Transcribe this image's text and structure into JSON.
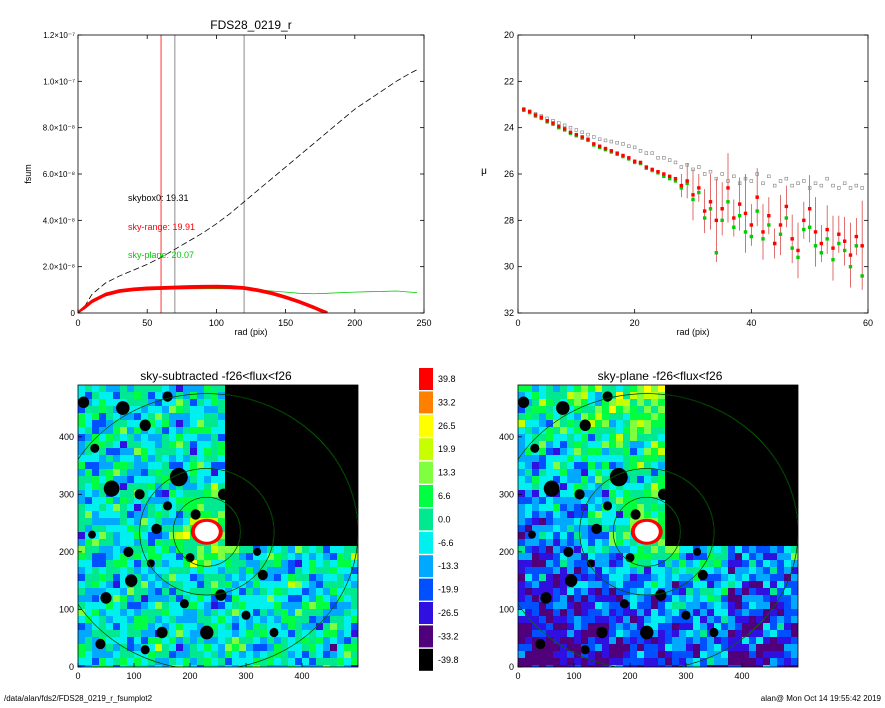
{
  "chart_data": [
    {
      "type": "line",
      "title": "FDS28_0219_r",
      "xlabel": "rad (pix)",
      "ylabel": "fsum",
      "xlim": [
        0,
        250
      ],
      "ylim": [
        0,
        1.2e-07
      ],
      "xticks": [
        "0",
        "50",
        "100",
        "150",
        "200",
        "250"
      ],
      "yticks": [
        "0",
        "2.0×10⁻⁸",
        "4.0×10⁻⁸",
        "6.0×10⁻⁸",
        "8.0×10⁻⁸",
        "1.0×10⁻⁷",
        "1.2×10⁻⁷"
      ],
      "vlines": [
        {
          "x": 60,
          "color": "#ff0000"
        },
        {
          "x": 70,
          "color": "#707070"
        },
        {
          "x": 120,
          "color": "#707070"
        }
      ],
      "annotations": [
        {
          "text": "skybox0: 19.31",
          "color": "#000000"
        },
        {
          "text": "sky-range: 19.91",
          "color": "#ff0000"
        },
        {
          "text": "sky-plane: 20.07",
          "color": "#00cc00"
        }
      ],
      "series": [
        {
          "color": "#000000",
          "style": "dashed",
          "x": [
            0,
            5,
            10,
            20,
            30,
            40,
            50,
            60,
            70,
            80,
            90,
            100,
            110,
            120,
            130,
            140,
            150,
            160,
            170,
            180,
            190,
            200,
            210,
            220,
            230,
            240,
            245
          ],
          "y": [
            0,
            3e-09,
            8e-09,
            1.3e-08,
            1.6e-08,
            1.85e-08,
            2.1e-08,
            2.4e-08,
            2.75e-08,
            3.1e-08,
            3.45e-08,
            3.85e-08,
            4.3e-08,
            4.8e-08,
            5.3e-08,
            5.8e-08,
            6.3e-08,
            6.8e-08,
            7.3e-08,
            7.8e-08,
            8.3e-08,
            8.8e-08,
            9.2e-08,
            9.6e-08,
            1e-07,
            1.035e-07,
            1.05e-07
          ]
        },
        {
          "color": "#00cc00",
          "style": "solid",
          "x": [
            0,
            5,
            10,
            20,
            30,
            40,
            50,
            60,
            70,
            80,
            90,
            100,
            110,
            120,
            130,
            140,
            150,
            160,
            170,
            180,
            190,
            200,
            210,
            220,
            230,
            240,
            245
          ],
          "y": [
            0,
            2.5e-09,
            5e-09,
            7.5e-09,
            9e-09,
            9.7e-09,
            1e-08,
            1.02e-08,
            1.03e-08,
            1.04e-08,
            1.05e-08,
            1.05e-08,
            1.05e-08,
            1.03e-08,
            1e-08,
            9.5e-09,
            9e-09,
            8.5e-09,
            8.3e-09,
            8.5e-09,
            8.8e-09,
            9e-09,
            9.2e-09,
            9.3e-09,
            9.5e-09,
            9e-09,
            8.8e-09
          ]
        },
        {
          "color": "#ff0000",
          "style": "band",
          "x": [
            0,
            5,
            10,
            20,
            30,
            40,
            50,
            60,
            70,
            80,
            90,
            100,
            110,
            120,
            130,
            140,
            150,
            160,
            170,
            175,
            180
          ],
          "y": [
            0,
            2.5e-09,
            5e-09,
            8e-09,
            9.5e-09,
            1.02e-08,
            1.06e-08,
            1.08e-08,
            1.1e-08,
            1.12e-08,
            1.13e-08,
            1.14e-08,
            1.12e-08,
            1.08e-08,
            9.8e-09,
            8.5e-09,
            6.8e-09,
            4.8e-09,
            2.5e-09,
            1.2e-09,
            0
          ]
        }
      ]
    },
    {
      "type": "scatter",
      "xlabel": "rad (pix)",
      "ylabel": "μ",
      "xlim": [
        0,
        60
      ],
      "ylim": [
        32,
        20
      ],
      "xticks": [
        "0",
        "20",
        "40",
        "60"
      ],
      "yticks": [
        "20",
        "22",
        "24",
        "26",
        "28",
        "30",
        "32"
      ],
      "series": [
        {
          "color": "#808080",
          "marker": "square",
          "x": [
            1,
            2,
            3,
            4,
            5,
            6,
            7,
            8,
            9,
            10,
            11,
            12,
            13,
            14,
            15,
            16,
            17,
            18,
            19,
            20,
            21,
            22,
            23,
            24,
            25,
            26,
            27,
            28,
            29,
            30,
            31,
            32,
            33,
            34,
            35,
            36,
            37,
            38,
            39,
            40,
            41,
            42,
            43,
            44,
            45,
            46,
            47,
            48,
            49,
            50,
            51,
            52,
            53,
            54,
            55,
            56,
            57,
            58,
            59
          ],
          "y": [
            23.2,
            23.3,
            23.4,
            23.5,
            23.6,
            23.7,
            23.8,
            23.9,
            24.0,
            24.1,
            24.2,
            24.3,
            24.4,
            24.5,
            24.55,
            24.6,
            24.65,
            24.7,
            24.8,
            24.85,
            25.0,
            25.1,
            25.1,
            25.3,
            25.3,
            25.4,
            25.5,
            25.7,
            25.6,
            25.8,
            25.7,
            26.0,
            25.9,
            26.2,
            26.0,
            26.3,
            26.1,
            26.4,
            26.2,
            26.3,
            26.0,
            26.4,
            26.1,
            26.5,
            26.3,
            26.2,
            26.5,
            26.4,
            26.3,
            26.6,
            26.4,
            26.5,
            26.2,
            26.5,
            26.6,
            26.4,
            26.6,
            26.5,
            26.6
          ]
        },
        {
          "color": "#ff0000",
          "marker": "square",
          "x": [
            1,
            2,
            3,
            4,
            5,
            6,
            7,
            8,
            9,
            10,
            11,
            12,
            13,
            14,
            15,
            16,
            17,
            18,
            19,
            20,
            21,
            22,
            23,
            24,
            25,
            26,
            27,
            28,
            29,
            30,
            31,
            32,
            33,
            34,
            35,
            36,
            37,
            38,
            39,
            40,
            41,
            42,
            43,
            44,
            45,
            46,
            47,
            48,
            49,
            50,
            51,
            52,
            53,
            54,
            55,
            56,
            57,
            58,
            59
          ],
          "y": [
            23.2,
            23.3,
            23.45,
            23.55,
            23.7,
            23.8,
            23.95,
            24.05,
            24.2,
            24.3,
            24.4,
            24.5,
            24.7,
            24.8,
            24.9,
            25.0,
            25.1,
            25.2,
            25.3,
            25.45,
            25.5,
            25.7,
            25.8,
            25.9,
            26.0,
            26.1,
            26.2,
            26.5,
            26.3,
            26.9,
            26.6,
            27.6,
            27.2,
            28.0,
            27.5,
            26.6,
            27.9,
            27.3,
            27.7,
            28.2,
            27.0,
            28.5,
            27.8,
            29.0,
            28.2,
            27.4,
            28.8,
            29.3,
            28.0,
            27.5,
            28.5,
            29.0,
            28.4,
            29.2,
            28.6,
            28.9,
            29.5,
            28.7,
            29.1
          ]
        },
        {
          "color": "#00cc00",
          "marker": "square",
          "x": [
            1,
            2,
            3,
            4,
            5,
            6,
            7,
            8,
            9,
            10,
            11,
            12,
            13,
            14,
            15,
            16,
            17,
            18,
            19,
            20,
            21,
            22,
            23,
            24,
            25,
            26,
            27,
            28,
            29,
            30,
            31,
            32,
            33,
            34,
            35,
            36,
            37,
            38,
            39,
            40,
            41,
            42,
            43,
            44,
            45,
            46,
            47,
            48,
            49,
            50,
            51,
            52,
            53,
            54,
            55,
            56,
            57,
            58,
            59
          ],
          "y": [
            23.25,
            23.35,
            23.5,
            23.6,
            23.75,
            23.85,
            24.0,
            24.1,
            24.25,
            24.35,
            24.45,
            24.55,
            24.75,
            24.85,
            24.95,
            25.05,
            25.15,
            25.25,
            25.35,
            25.5,
            25.55,
            25.75,
            25.85,
            25.95,
            26.1,
            26.2,
            26.3,
            26.6,
            26.4,
            27.1,
            26.8,
            27.9,
            27.5,
            29.4,
            28.0,
            27.2,
            28.3,
            27.8,
            28.5,
            28.7,
            27.6,
            28.8,
            28.2,
            29.0,
            28.6,
            27.9,
            29.2,
            29.6,
            28.4,
            28.3,
            29.1,
            29.4,
            28.8,
            29.7,
            29.0,
            29.3,
            30.0,
            29.1,
            30.4
          ]
        }
      ]
    },
    {
      "type": "heatmap",
      "title": "sky-subtracted -f26<flux<f26",
      "xlim": [
        0,
        500
      ],
      "ylim": [
        0,
        490
      ],
      "xticks": [
        "0",
        "100",
        "200",
        "300",
        "400"
      ],
      "yticks": [
        "0",
        "100",
        "200",
        "300",
        "400"
      ],
      "colorbar": [
        "39.8",
        "33.2",
        "26.5",
        "19.9",
        "13.3",
        "6.6",
        "0.0",
        "-6.6",
        "-13.3",
        "-19.9",
        "-26.5",
        "-33.2",
        "-39.8"
      ],
      "colorbar_colors": [
        "#ff0000",
        "#ff8000",
        "#ffff00",
        "#c8ff00",
        "#80ff40",
        "#00ff40",
        "#00e890",
        "#00f0f0",
        "#00a8ff",
        "#0050ff",
        "#3010e0",
        "#50007a",
        "#000000"
      ]
    },
    {
      "type": "heatmap",
      "title": "sky-plane -f26<flux<f26",
      "xlim": [
        0,
        500
      ],
      "ylim": [
        0,
        490
      ],
      "xticks": [
        "0",
        "100",
        "200",
        "300",
        "400"
      ],
      "yticks": [
        "0",
        "100",
        "200",
        "300",
        "400"
      ]
    }
  ],
  "footer": {
    "path": "/data/alan/fds2/FDS28_0219_r_fsumplot2",
    "stamp": "alan@  Mon Oct 14 19:55:42 2019"
  }
}
